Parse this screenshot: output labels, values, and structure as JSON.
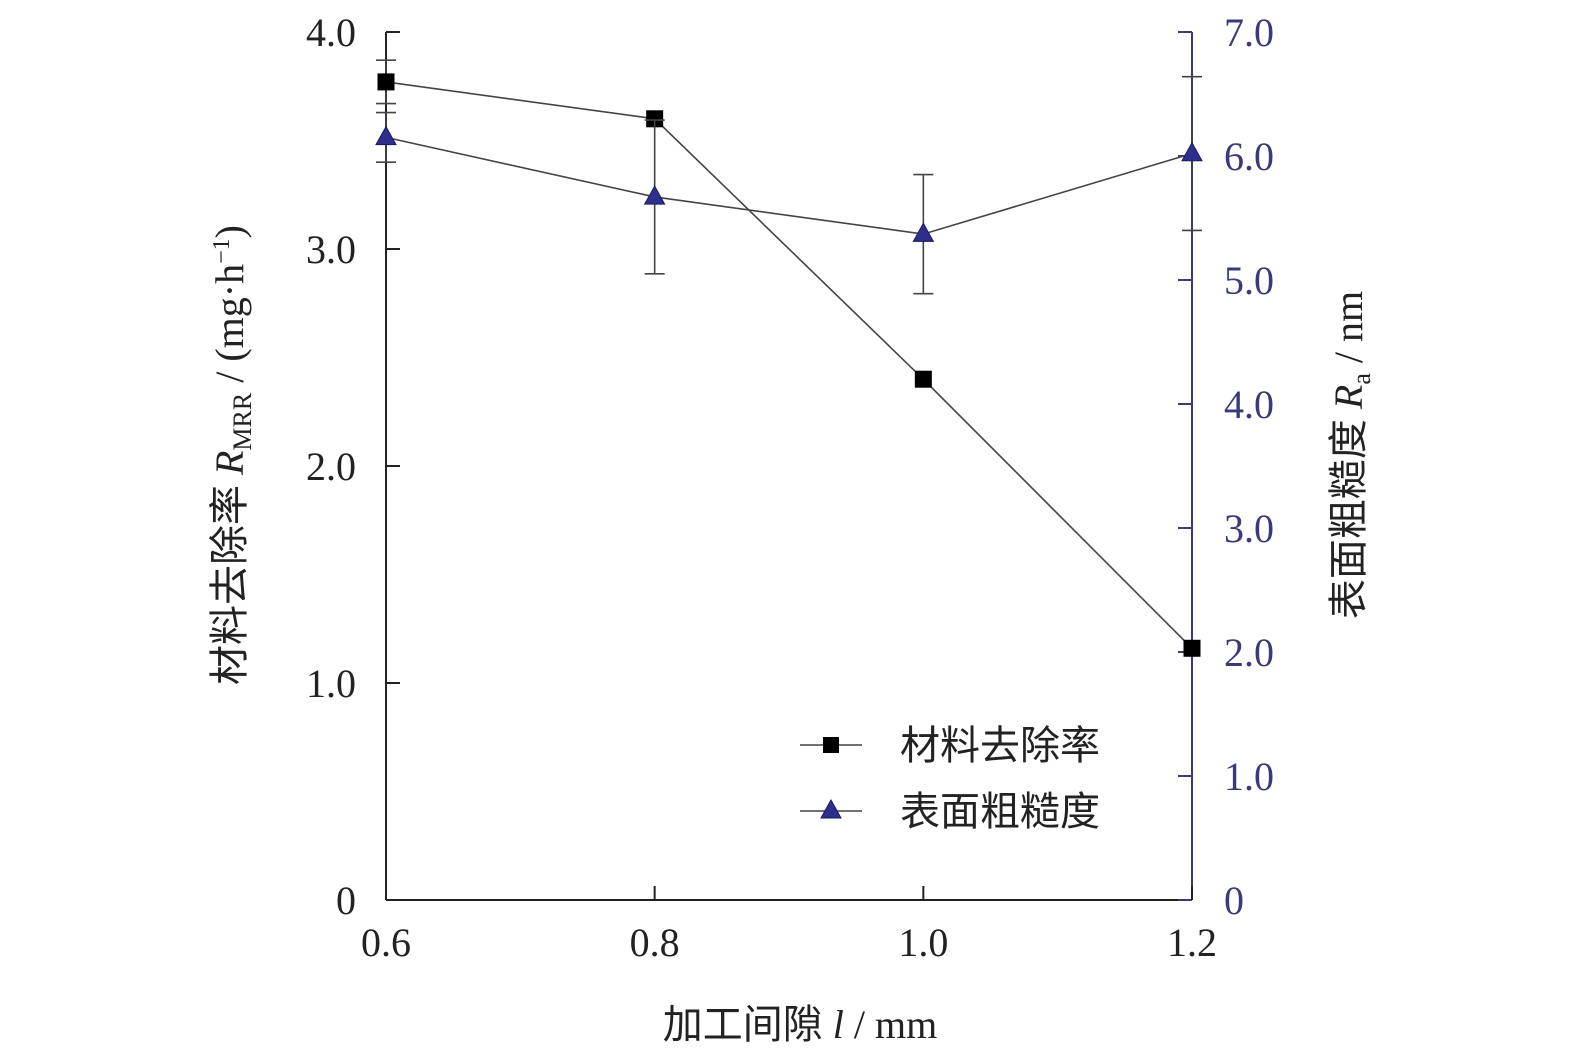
{
  "chart_data": {
    "type": "line",
    "xlabel": "加工间隙 l / mm",
    "xlabel_parts": {
      "prefix": "加工间隙 ",
      "var": "l",
      "suffix": " / mm"
    },
    "ylabel_left": "材料去除率 RMRR / (mg·h⁻¹)",
    "ylabel_left_parts": {
      "prefix": "材料去除率 ",
      "var": "R",
      "sub": "MRR",
      "suffix": " / (mg·h",
      "sup": "−1",
      "close": ")"
    },
    "ylabel_right": "表面粗糙度 Ra / nm",
    "ylabel_right_parts": {
      "prefix": "表面粗糙度 ",
      "var": "R",
      "sub": "a",
      "suffix": " / nm"
    },
    "x": [
      0.6,
      0.8,
      1.0,
      1.2
    ],
    "x_ticks": [
      "0.6",
      "0.8",
      "1.0",
      "1.2"
    ],
    "xlim": [
      0.6,
      1.2
    ],
    "ylim_left": [
      0,
      4.0
    ],
    "y_ticks_left": [
      "0",
      "1.0",
      "2.0",
      "3.0",
      "4.0"
    ],
    "ylim_right": [
      0,
      7.0
    ],
    "y_ticks_right": [
      "0",
      "1.0",
      "2.0",
      "3.0",
      "4.0",
      "5.0",
      "6.0",
      "7.0"
    ],
    "legend_position": "bottom-right",
    "series": [
      {
        "name": "材料去除率",
        "axis": "left",
        "marker": "square",
        "color": "#000000",
        "values": [
          3.77,
          3.6,
          2.4,
          1.16
        ],
        "error": [
          0.1,
          0.0,
          0.0,
          0.0
        ]
      },
      {
        "name": "表面粗糙度",
        "axis": "right",
        "marker": "triangle",
        "color": "#2e2e8c",
        "values": [
          6.15,
          5.67,
          5.37,
          6.02
        ],
        "error": [
          0.2,
          0.62,
          0.48,
          0.62
        ]
      }
    ],
    "colors": {
      "axis_left": "#222222",
      "axis_right": "#3a3a78",
      "line": "#444444"
    }
  }
}
